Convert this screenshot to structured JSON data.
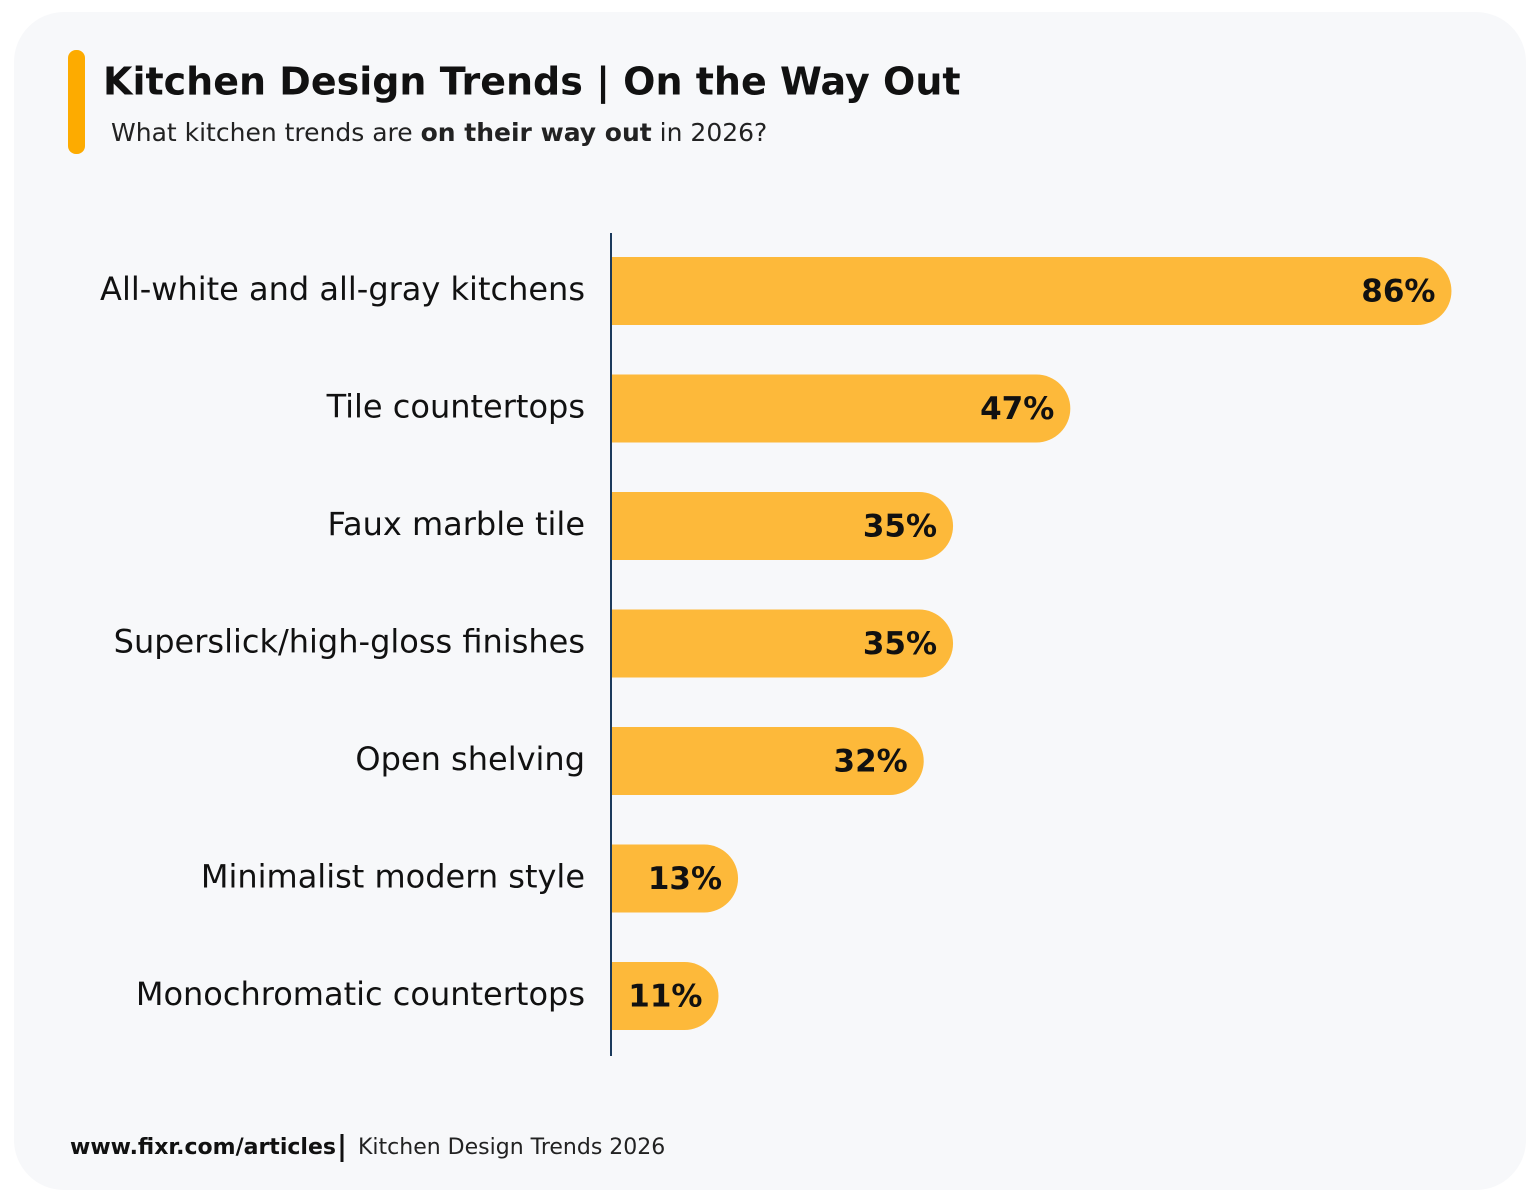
{
  "chart_data": {
    "type": "bar",
    "orientation": "horizontal",
    "title": "Kitchen Design Trends | On the Way Out",
    "subtitle": [
      "What kitchen trends are",
      "on their way out",
      "in 2026?"
    ],
    "categories": [
      "All-white and all-gray kitchens",
      "Tile countertops",
      "Faux marble tile",
      "Superslick/high-gloss finishes",
      "Open shelving",
      "Minimalist modern style",
      "Monochromatic countertops"
    ],
    "values": [
      86,
      47,
      35,
      35,
      32,
      13,
      11
    ],
    "value_labels": [
      "86%",
      "47%",
      "35%",
      "35%",
      "32%",
      "13%",
      "11%"
    ],
    "color": "#fdb93a",
    "xlim": [
      0,
      88
    ],
    "source": [
      "www.fixr.com/articles",
      "Kitchen Design Trends 2026"
    ]
  }
}
